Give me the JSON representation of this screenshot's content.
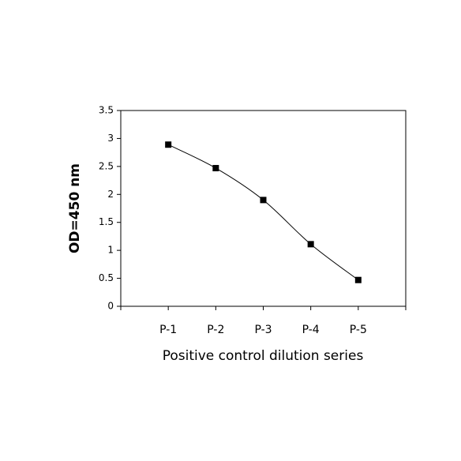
{
  "chart_data": {
    "type": "line",
    "y_label": "OD=450 nm",
    "x_label": "Positive control dilution series",
    "categories": [
      "P-1",
      "P-2",
      "P-3",
      "P-4",
      "P-5"
    ],
    "values": [
      2.89,
      2.47,
      1.9,
      1.11,
      0.47
    ],
    "color": "#000000",
    "ylim": [
      0,
      3.5
    ],
    "yticks": [
      0,
      0.5,
      1,
      1.5,
      2,
      2.5,
      3,
      3.5
    ],
    "grid": false
  }
}
